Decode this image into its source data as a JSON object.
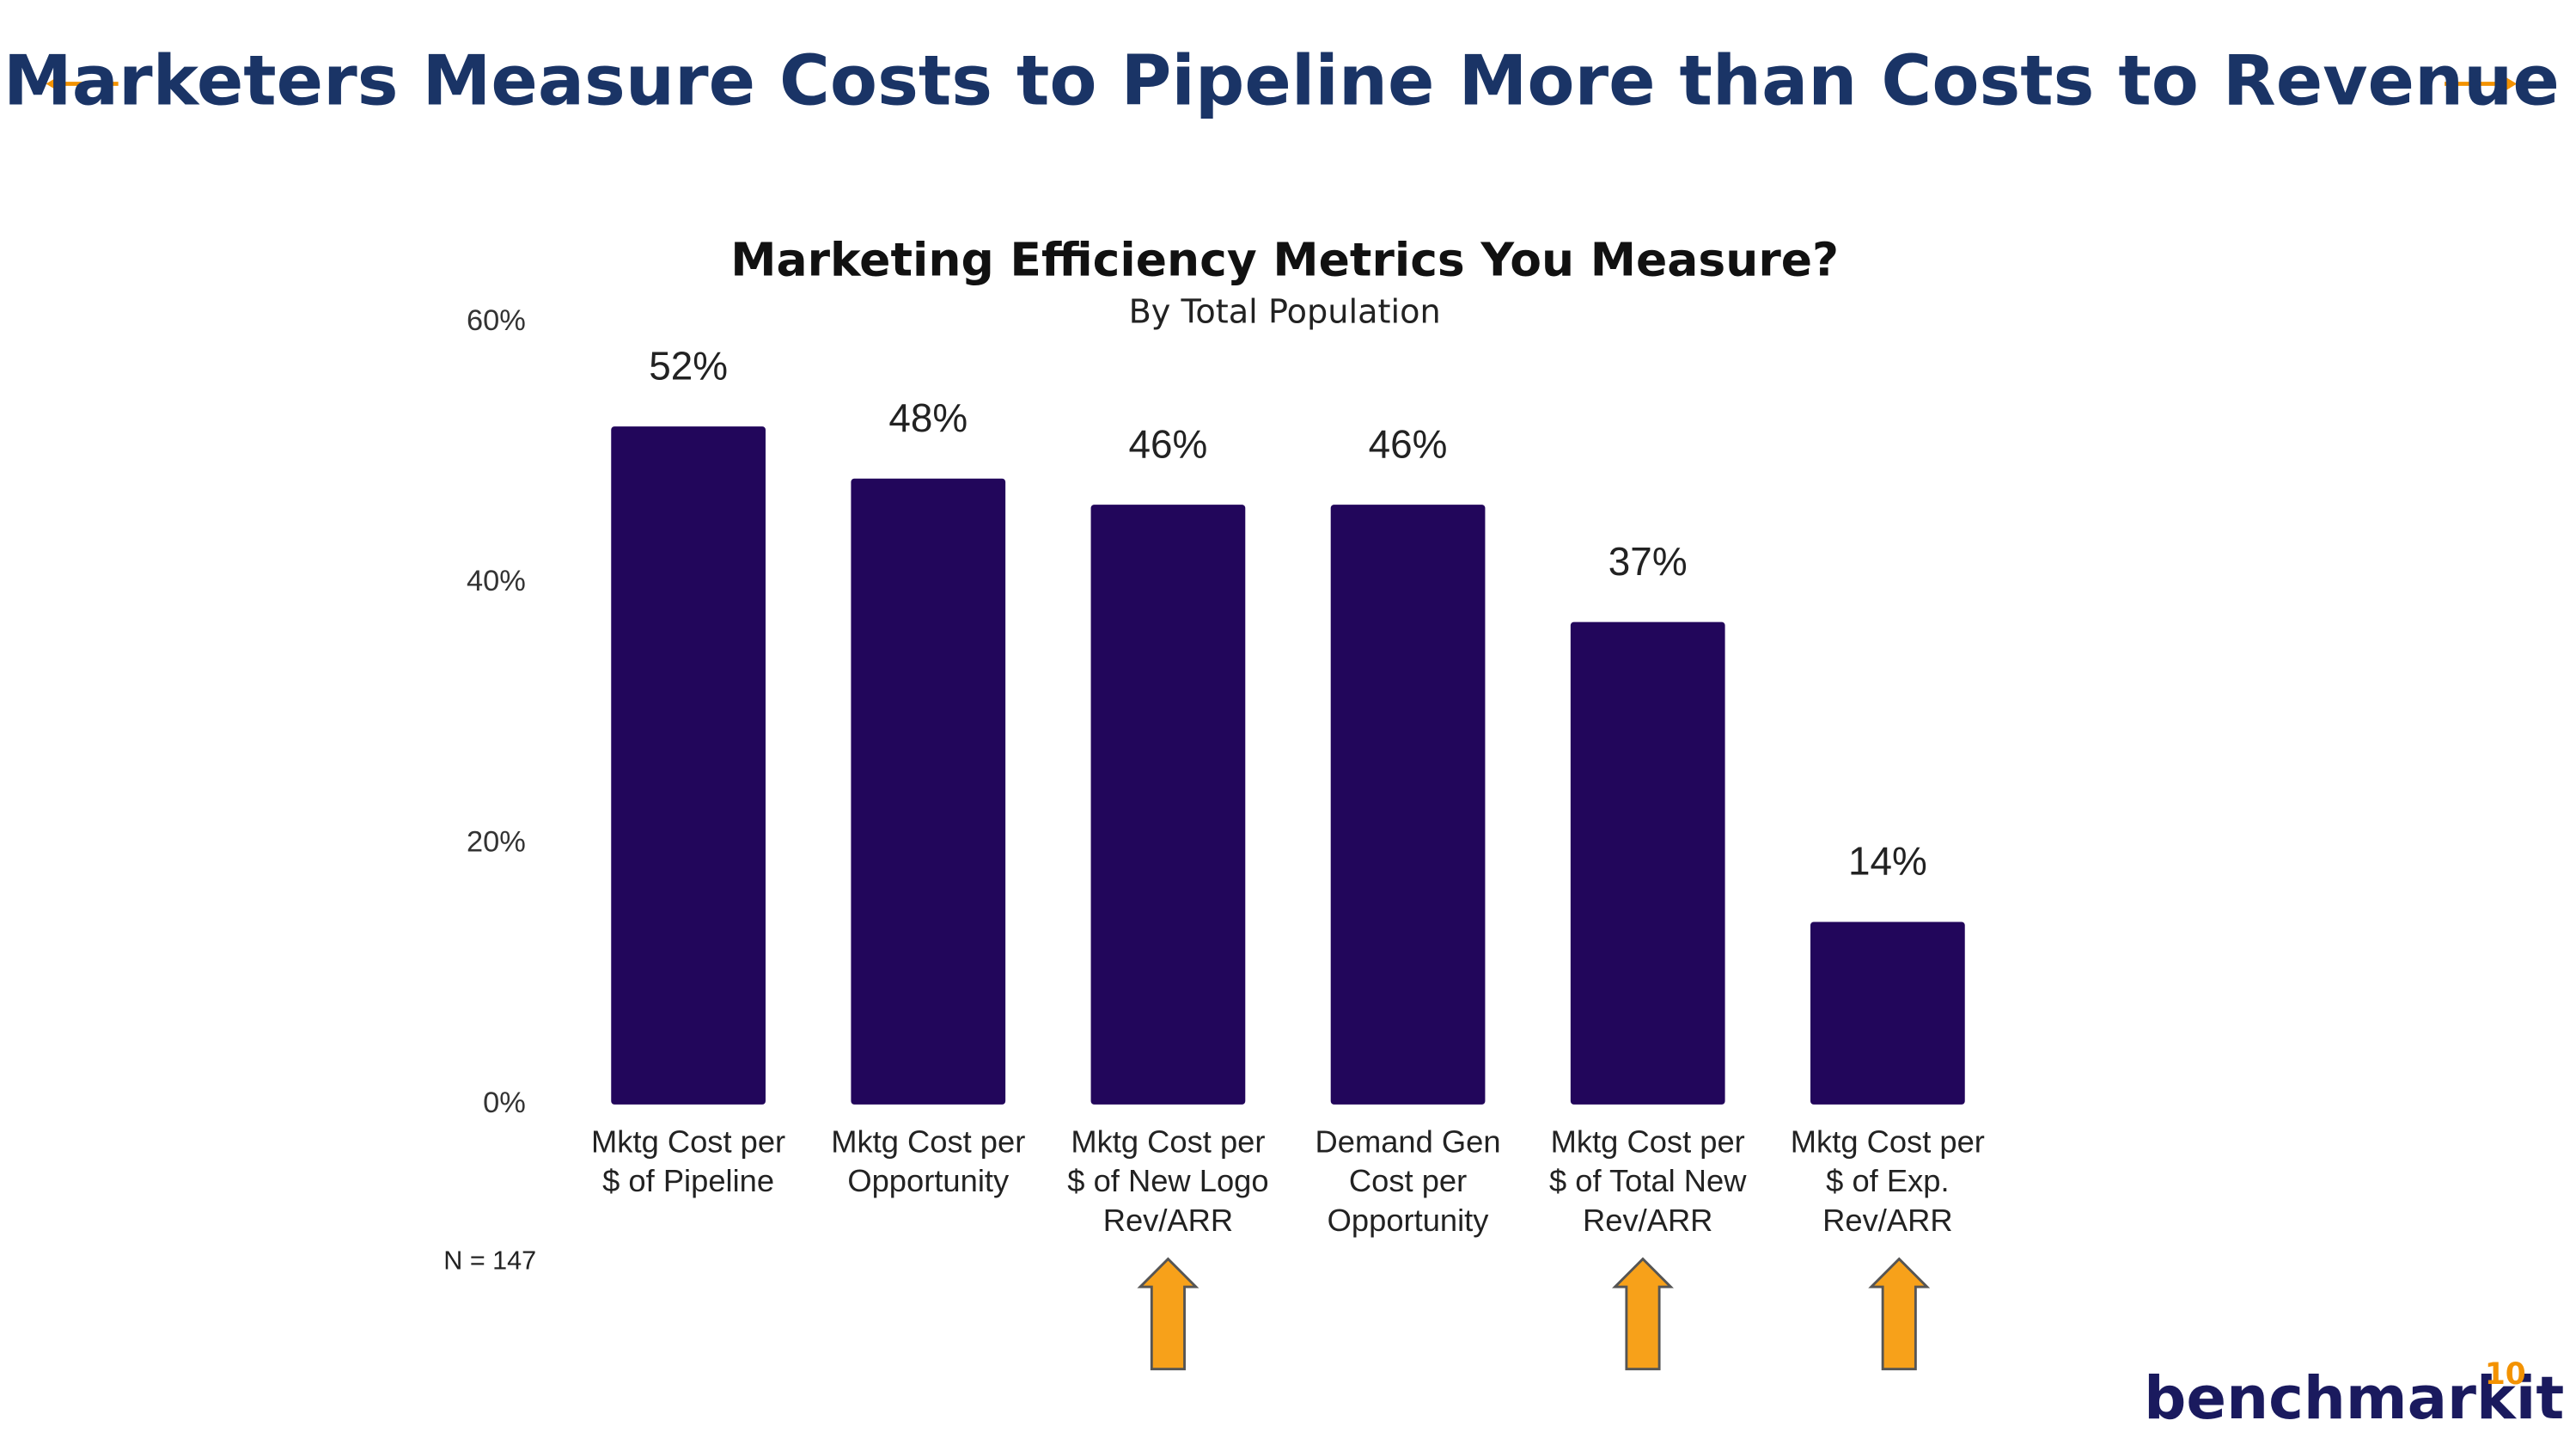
{
  "page_title": "Marketers Measure Costs to Pipeline More than Costs to Revenue",
  "note": "N = 147",
  "logo": "benchmarkit",
  "page_number": "10",
  "chart_data": {
    "type": "bar",
    "title": "Marketing Efficiency Metrics You Measure?",
    "subtitle": "By Total Population",
    "categories": [
      "Mktg Cost per\n$ of Pipeline",
      "Mktg Cost per\nOpportunity",
      "Mktg Cost per\n$ of New Logo\nRev/ARR",
      "Demand Gen\nCost per\nOpportunity",
      "Mktg Cost per\n$ of Total New\nRev/ARR",
      "Mktg Cost per\n$ of Exp.\nRev/ARR"
    ],
    "values": [
      52,
      48,
      46,
      46,
      37,
      14
    ],
    "value_labels": [
      "52%",
      "48%",
      "46%",
      "46%",
      "37%",
      "14%"
    ],
    "color": "#22065b",
    "ylim": [
      0,
      60
    ],
    "yticks": [
      {
        "value": 0,
        "label": "0%"
      },
      {
        "value": 20,
        "label": "20%"
      },
      {
        "value": 40,
        "label": "40%"
      },
      {
        "value": 60,
        "label": "60%"
      }
    ],
    "grid": false
  }
}
